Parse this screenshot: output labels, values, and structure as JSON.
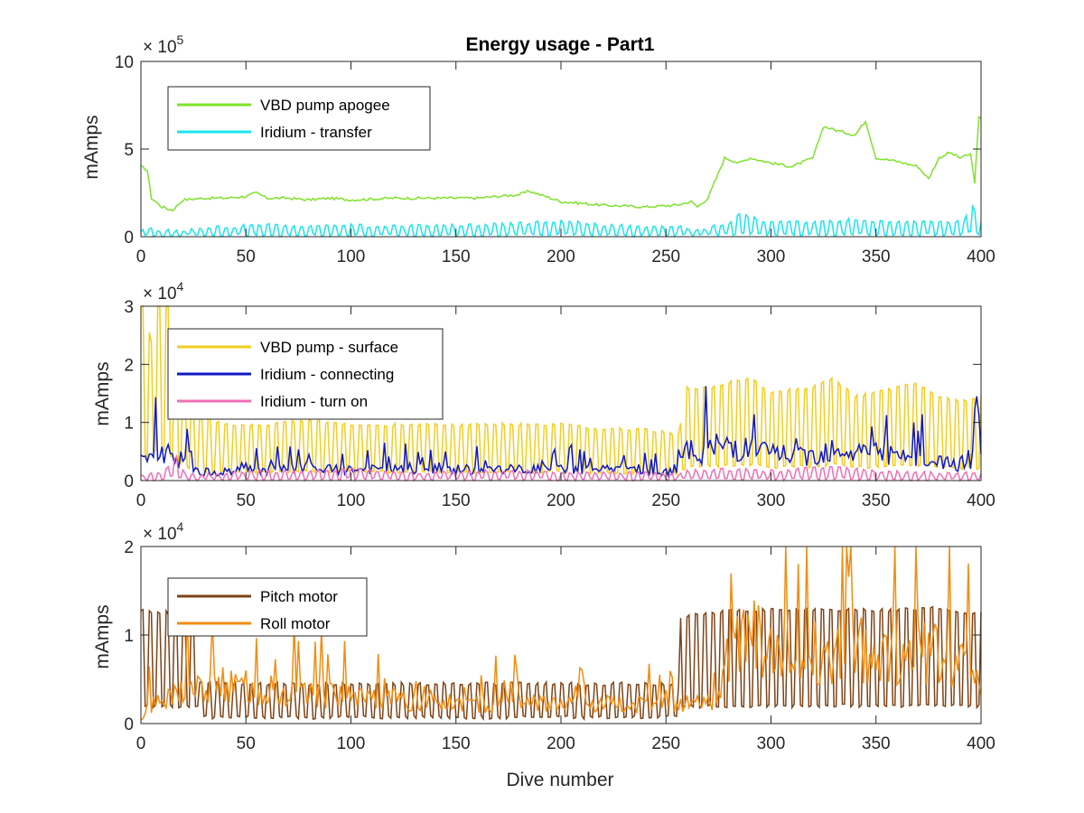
{
  "chart_data": [
    {
      "type": "line",
      "title": "Energy usage - Part1",
      "xlabel": "",
      "ylabel": "mAmps",
      "xlim": [
        0,
        400
      ],
      "ylim": [
        0,
        10
      ],
      "y_exponent": "× 10",
      "y_exponent_power": "5",
      "x_ticks": [
        "0",
        "50",
        "100",
        "150",
        "200",
        "250",
        "300",
        "350",
        "400"
      ],
      "y_ticks": [
        "0",
        "5",
        "10"
      ],
      "legend_position": "top-left",
      "grid": false,
      "series": [
        {
          "name": "VBD pump apogee",
          "color": "#7de32a",
          "style": "smooth",
          "x": [
            0,
            3,
            5,
            10,
            15,
            20,
            30,
            40,
            50,
            55,
            60,
            70,
            80,
            90,
            100,
            120,
            140,
            160,
            180,
            185,
            190,
            200,
            210,
            220,
            240,
            255,
            262,
            265,
            270,
            278,
            285,
            290,
            300,
            310,
            320,
            325,
            330,
            340,
            345,
            350,
            360,
            370,
            375,
            380,
            385,
            390,
            395,
            397,
            399,
            400
          ],
          "y": [
            4.0,
            3.8,
            2.2,
            1.7,
            1.5,
            2.1,
            2.2,
            2.2,
            2.3,
            2.5,
            2.2,
            2.2,
            2.1,
            2.2,
            2.1,
            2.2,
            2.2,
            2.2,
            2.4,
            2.6,
            2.4,
            2.0,
            1.9,
            1.8,
            1.7,
            1.8,
            2.0,
            1.7,
            2.2,
            4.5,
            4.2,
            4.5,
            4.2,
            4.0,
            4.5,
            6.3,
            6.1,
            5.8,
            6.6,
            4.5,
            4.3,
            4.0,
            3.3,
            4.5,
            4.8,
            4.5,
            4.7,
            3.1,
            6.8,
            6.7
          ]
        },
        {
          "name": "Iridium - transfer",
          "color": "#19e4f0",
          "style": "oscillating",
          "x": [
            0,
            5,
            10,
            20,
            28,
            40,
            60,
            80,
            100,
            120,
            140,
            160,
            180,
            200,
            220,
            240,
            255,
            265,
            270,
            280,
            285,
            290,
            300,
            320,
            340,
            360,
            380,
            392,
            395,
            400
          ],
          "y": [
            0.2,
            0.3,
            0.2,
            0.2,
            0.3,
            0.35,
            0.4,
            0.35,
            0.4,
            0.35,
            0.4,
            0.4,
            0.45,
            0.55,
            0.4,
            0.35,
            0.35,
            0.2,
            0.3,
            0.5,
            0.8,
            0.7,
            0.5,
            0.5,
            0.6,
            0.5,
            0.5,
            0.6,
            1.2,
            0.5
          ]
        }
      ]
    },
    {
      "type": "line",
      "title": "",
      "xlabel": "",
      "ylabel": "mAmps",
      "xlim": [
        0,
        400
      ],
      "ylim": [
        0,
        3
      ],
      "y_exponent": "× 10",
      "y_exponent_power": "4",
      "x_ticks": [
        "0",
        "50",
        "100",
        "150",
        "200",
        "250",
        "300",
        "350",
        "400"
      ],
      "y_ticks": [
        "0",
        "1",
        "2",
        "3"
      ],
      "legend_position": "top-left",
      "grid": false,
      "series": [
        {
          "name": "VBD pump - surface",
          "color": "#f2cd1e",
          "style": "oscillating",
          "x": [
            0,
            5,
            8,
            12,
            16,
            20,
            28,
            40,
            60,
            80,
            100,
            120,
            140,
            160,
            180,
            200,
            220,
            240,
            256,
            260,
            270,
            280,
            290,
            300,
            320,
            330,
            340,
            350,
            360,
            370,
            380,
            390,
            400
          ],
          "y": [
            2.0,
            1.5,
            2.5,
            2.0,
            1.5,
            1.1,
            0.7,
            0.6,
            0.6,
            0.65,
            0.6,
            0.6,
            0.6,
            0.6,
            0.6,
            0.6,
            0.55,
            0.55,
            0.5,
            1.0,
            1.0,
            1.05,
            1.1,
            0.95,
            1.0,
            1.1,
            0.9,
            0.95,
            1.0,
            1.05,
            0.9,
            0.85,
            0.9
          ]
        },
        {
          "name": "Iridium - connecting",
          "color": "#0f18c4",
          "style": "spiky",
          "x": [
            0,
            5,
            10,
            15,
            20,
            25,
            30,
            40,
            60,
            80,
            100,
            120,
            140,
            160,
            180,
            200,
            220,
            240,
            255,
            258,
            270,
            280,
            290,
            300,
            310,
            320,
            330,
            340,
            350,
            360,
            370,
            380,
            390,
            400
          ],
          "y": [
            0.5,
            0.6,
            0.6,
            0.7,
            0.4,
            0.3,
            0.2,
            0.2,
            0.25,
            0.25,
            0.25,
            0.25,
            0.25,
            0.25,
            0.25,
            0.25,
            0.25,
            0.2,
            0.2,
            0.6,
            0.7,
            0.8,
            0.7,
            0.6,
            0.6,
            0.55,
            0.8,
            0.6,
            0.7,
            0.5,
            0.45,
            0.4,
            0.4,
            0.6
          ]
        },
        {
          "name": "Iridium - turn on",
          "color": "#ef6fb6",
          "style": "oscillating",
          "x": [
            0,
            10,
            18,
            20,
            28,
            40,
            60,
            80,
            100,
            120,
            140,
            160,
            180,
            200,
            220,
            240,
            256,
            260,
            280,
            300,
            330,
            350,
            370,
            400
          ],
          "y": [
            0.05,
            0.08,
            0.3,
            0.1,
            0.05,
            0.08,
            0.1,
            0.1,
            0.12,
            0.1,
            0.08,
            0.1,
            0.1,
            0.08,
            0.08,
            0.08,
            0.06,
            0.1,
            0.12,
            0.1,
            0.15,
            0.1,
            0.08,
            0.08
          ]
        }
      ]
    },
    {
      "type": "line",
      "title": "",
      "xlabel": "Dive number",
      "ylabel": "mAmps",
      "xlim": [
        0,
        400
      ],
      "ylim": [
        0,
        2
      ],
      "y_exponent": "× 10",
      "y_exponent_power": "4",
      "x_ticks": [
        "0",
        "50",
        "100",
        "150",
        "200",
        "250",
        "300",
        "350",
        "400"
      ],
      "y_ticks": [
        "0",
        "1",
        "2"
      ],
      "legend_position": "top-left",
      "grid": false,
      "series": [
        {
          "name": "Pitch motor",
          "color": "#7e4316",
          "style": "oscillating",
          "x": [
            0,
            15,
            20,
            27,
            28,
            40,
            60,
            80,
            100,
            120,
            140,
            160,
            180,
            200,
            220,
            240,
            256,
            257,
            270,
            280,
            300,
            320,
            340,
            360,
            380,
            390,
            400
          ],
          "y": [
            0.8,
            0.78,
            0.78,
            0.78,
            0.3,
            0.28,
            0.28,
            0.28,
            0.28,
            0.28,
            0.28,
            0.28,
            0.28,
            0.28,
            0.28,
            0.28,
            0.28,
            0.75,
            0.78,
            0.8,
            0.8,
            0.8,
            0.8,
            0.8,
            0.82,
            0.78,
            0.78
          ]
        },
        {
          "name": "Roll motor",
          "color": "#f28c0f",
          "style": "spiky",
          "x": [
            0,
            5,
            10,
            15,
            20,
            30,
            40,
            50,
            60,
            80,
            100,
            120,
            140,
            160,
            180,
            200,
            220,
            240,
            255,
            260,
            270,
            275,
            280,
            290,
            295,
            300,
            320,
            340,
            360,
            380,
            390,
            395,
            400
          ],
          "y": [
            0.05,
            0.3,
            0.35,
            0.4,
            0.6,
            0.55,
            0.6,
            0.55,
            0.5,
            0.45,
            0.4,
            0.35,
            0.35,
            0.3,
            0.3,
            0.3,
            0.3,
            0.28,
            0.25,
            0.3,
            0.35,
            0.4,
            1.0,
            1.35,
            1.2,
            1.1,
            1.05,
            1.1,
            1.05,
            1.1,
            0.95,
            0.9,
            0.7
          ]
        }
      ]
    }
  ]
}
